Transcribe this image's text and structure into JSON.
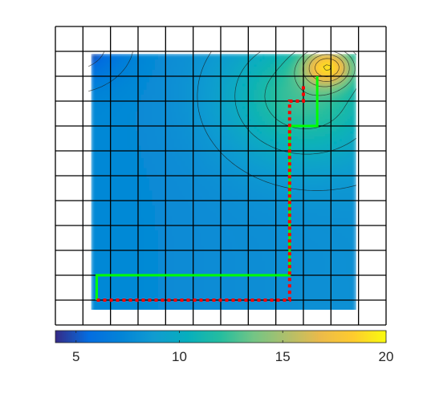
{
  "chart_data": {
    "type": "heatmap",
    "title": "",
    "xlabel": "",
    "ylabel": "",
    "grid": true,
    "grid_cells": [
      12,
      12
    ],
    "colormap": "parula",
    "colorbar": {
      "placement": "bottom",
      "range": [
        4,
        20
      ],
      "ticks": [
        5,
        10,
        15,
        20
      ],
      "tick_labels": [
        "5",
        "10",
        "15",
        "20"
      ]
    },
    "surface_peak": {
      "x": 9.9,
      "y": 10.4,
      "value": 20
    },
    "series": [
      {
        "style": "solid",
        "color": "#00ff00",
        "x": [
          1.5,
          1.5,
          8.5,
          8.5,
          9.5,
          9.5
        ],
        "y": [
          1.0,
          2.0,
          2.0,
          8.0,
          8.0,
          10.0
        ]
      },
      {
        "style": "dotted",
        "color": "#ff0000",
        "x": [
          1.5,
          8.5,
          8.5,
          9.0,
          9.0
        ],
        "y": [
          1.0,
          1.0,
          9.0,
          9.0,
          9.6
        ]
      }
    ]
  }
}
